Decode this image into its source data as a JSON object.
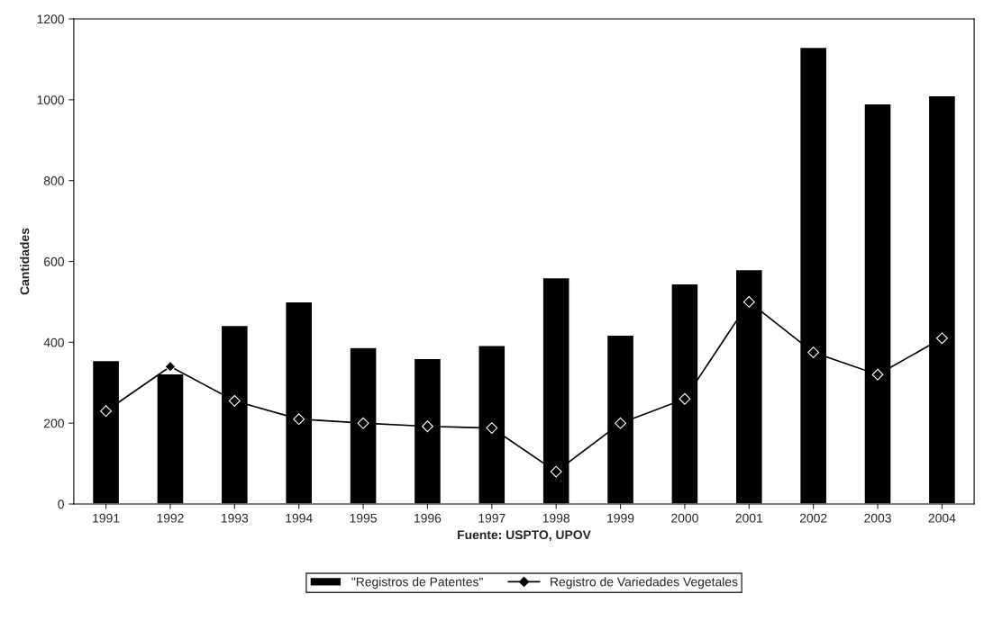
{
  "chart_data": {
    "type": "bar",
    "xlabel": "Fuente: USPTO, UPOV",
    "ylabel": "Cantidades",
    "categories": [
      "1991",
      "1992",
      "1993",
      "1994",
      "1995",
      "1996",
      "1997",
      "1998",
      "1999",
      "2000",
      "2001",
      "2002",
      "2003",
      "2004"
    ],
    "series": [
      {
        "name": "\"Registros de Patentes\"",
        "color": "#000000",
        "values": [
          355,
          322,
          442,
          500,
          387,
          360,
          392,
          560,
          418,
          545,
          580,
          1130,
          990,
          1010
        ]
      },
      {
        "name": "Registro de Variedades Vegetales",
        "color": "#000000",
        "type": "line",
        "marker": "diamond",
        "values": [
          230,
          340,
          255,
          210,
          200,
          192,
          188,
          80,
          200,
          260,
          500,
          375,
          320,
          410
        ]
      }
    ],
    "ylim": [
      0,
      1200
    ],
    "yticks": [
      0,
      200,
      400,
      600,
      800,
      1000,
      1200
    ],
    "grid": false,
    "legend": "bottom"
  }
}
